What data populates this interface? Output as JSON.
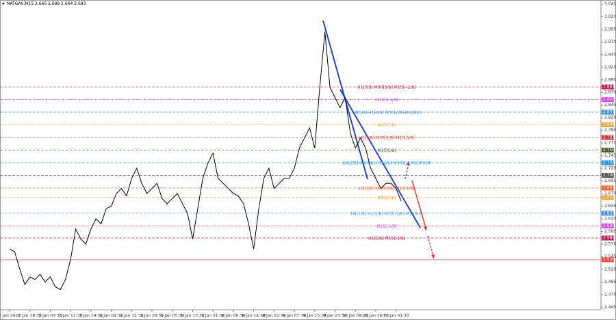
{
  "chart_data": {
    "type": "line",
    "title": "NATGAS,M15  2.666 2.689 2.664 2.683",
    "color": "#000000",
    "categories": [
      "2 Jan 2024",
      null,
      null,
      null,
      "2 Jan 18:30",
      null,
      null,
      null,
      "3 Jan 03:30",
      null,
      null,
      null,
      "3 Jan 11:30",
      null,
      null,
      null,
      "3 Jan 19:30",
      null,
      null,
      null,
      "4 Jan 04:30",
      null,
      null,
      null,
      "4 Jan 12:30",
      null,
      null,
      null,
      "4 Jan 20:30",
      null,
      null,
      null,
      "5 Jan 05:30",
      null,
      null,
      null,
      "5 Jan 13:30",
      null,
      null,
      null,
      "5 Jan 21:30",
      null,
      null,
      null,
      "8 Jan 06:30",
      null,
      null,
      null,
      "8 Jan 14:30",
      null,
      null,
      null,
      "8 Jan 22:30",
      null,
      null,
      null,
      "9 Jan 07:30",
      null,
      null,
      null,
      "9 Jan 15:30",
      null,
      null,
      null,
      "9 Jan 23:30",
      null,
      null,
      null,
      "10 Jan 08:30",
      null,
      null,
      null,
      "10 Jan 16:30",
      null,
      null,
      null,
      "11 Jan 01:30",
      null,
      null,
      null
    ],
    "values": [
      2.56,
      2.555,
      2.52,
      2.49,
      2.505,
      2.5,
      2.51,
      2.495,
      2.505,
      2.485,
      2.48,
      2.5,
      2.54,
      2.6,
      2.58,
      2.57,
      2.6,
      2.62,
      2.61,
      2.64,
      2.645,
      2.67,
      2.68,
      2.665,
      2.7,
      2.72,
      2.69,
      2.67,
      2.68,
      2.69,
      2.66,
      2.65,
      2.66,
      2.67,
      2.65,
      2.63,
      2.58,
      2.64,
      2.7,
      2.73,
      2.75,
      2.7,
      2.69,
      2.68,
      2.67,
      2.665,
      2.65,
      2.61,
      2.56,
      2.64,
      2.7,
      2.72,
      2.68,
      2.69,
      2.7,
      2.7,
      2.72,
      2.76,
      2.78,
      2.8,
      2.76,
      2.88,
      2.99,
      2.88,
      2.86,
      2.84,
      2.86,
      2.79,
      2.76,
      2.78,
      2.76,
      2.72,
      2.7,
      2.68,
      2.69,
      2.69,
      2.68,
      2.655,
      null,
      null
    ],
    "ylim": [
      2.44,
      3.053
    ],
    "yticks": [
      3.045,
      {
        "value": 3.02,
        "label": "3.020"
      },
      2.995,
      {
        "value": 2.97,
        "label": "2.970"
      },
      2.945,
      {
        "value": 2.92,
        "label": "2.920"
      },
      2.895,
      {
        "value": 2.87,
        "label": "2.870"
      },
      2.845,
      {
        "value": 2.82,
        "label": "2.820"
      },
      2.795,
      {
        "value": 2.77,
        "label": "2.770"
      },
      2.745,
      {
        "value": 2.72,
        "label": "2.720"
      },
      2.695,
      {
        "value": 2.67,
        "label": "2.670"
      },
      2.645,
      {
        "value": 2.62,
        "label": "2.620"
      },
      2.595,
      {
        "value": 2.57,
        "label": "2.570"
      },
      2.545,
      {
        "value": 2.52,
        "label": "2.520"
      },
      2.495,
      {
        "value": 2.47,
        "label": "2.470"
      },
      2.445
    ],
    "levels": [
      {
        "name": "H1[7/8] M30[5/8] M15[+2/8]",
        "value": 2.881,
        "color": "#c2185b"
      },
      {
        "name": "M15[+1/8]",
        "value": 2.856,
        "color": "#e040fb"
      },
      {
        "name": "H4[5/8] H1[6/8] M30[2/8] M15RES",
        "value": 2.831,
        "color": "#3d8fd6"
      },
      {
        "name": "M15[7/8]",
        "value": 2.806,
        "color": "#f0a030"
      },
      {
        "name": "H1[5/8] M30[1/8] M15[6/8]",
        "value": 2.781,
        "color": "#d32f2f"
      },
      {
        "name": "M15[5/8]",
        "value": 2.756,
        "color": "#4a5d23"
      },
      {
        "name": "D1[2/8] H4[4/8] H1[4/8] M30SUP M15PVOT",
        "value": 2.731,
        "color": "#2196f3"
      },
      {
        "value": 2.706,
        "color": "#555555"
      },
      {
        "name": "H1[3/8] M30[0/8] M15[4/8]",
        "value": 2.681,
        "color": "#ff5722"
      },
      {
        "name": "M15[3/8]",
        "value": 2.662,
        "color": "#f0a030"
      },
      {
        "name": "H4[3/8] H1[2/8] M30[-2/8] M15SUP",
        "value": 2.631,
        "color": "#3d8fd6"
      },
      {
        "name": "M15[-1/8]",
        "value": 2.606,
        "color": "#e040fb"
      },
      {
        "name": "H1[1/8] M15[-2/8]",
        "value": 2.582,
        "color": "#c2185b"
      },
      {
        "value": 2.539,
        "color": "#f44336"
      }
    ]
  }
}
